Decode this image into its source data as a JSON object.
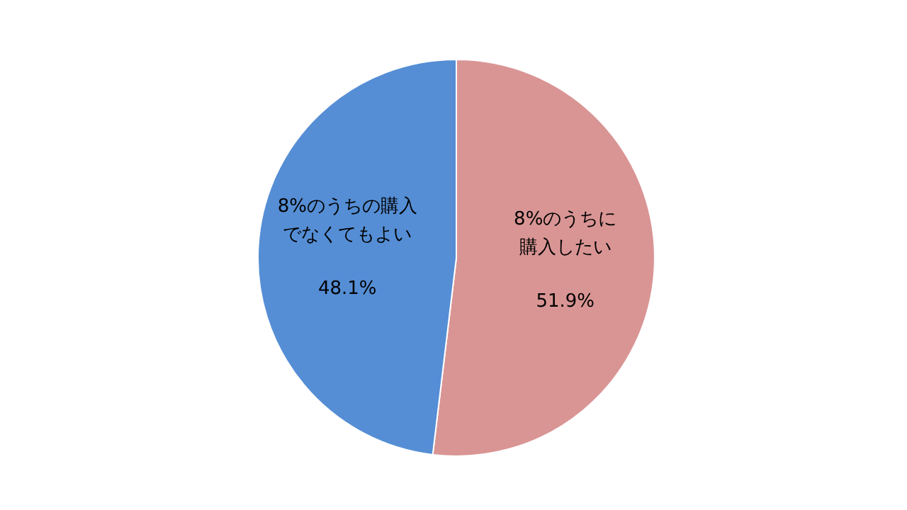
{
  "chart_data": {
    "type": "pie",
    "categories": [
      "8%のうちに購入したい",
      "8%のうちの購入でなくてもよい"
    ],
    "values": [
      51.9,
      48.1
    ],
    "colors": [
      "#d99594",
      "#558ed5"
    ],
    "value_labels": [
      "51.9%",
      "48.1%"
    ],
    "legend": false
  }
}
